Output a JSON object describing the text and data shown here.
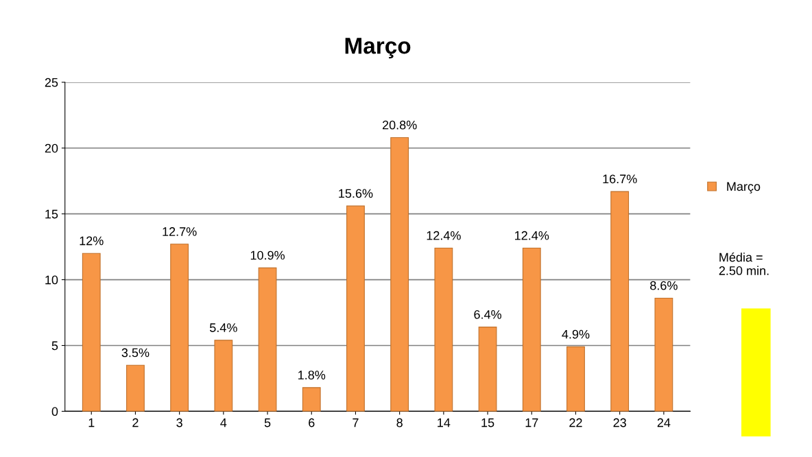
{
  "chart_data": {
    "type": "bar",
    "title": "Março",
    "categories": [
      "1",
      "2",
      "3",
      "4",
      "5",
      "6",
      "7",
      "8",
      "14",
      "15",
      "17",
      "22",
      "23",
      "24"
    ],
    "series": [
      {
        "name": "Março",
        "color": "#f79646",
        "values": [
          12,
          3.5,
          12.7,
          5.4,
          10.9,
          1.8,
          15.6,
          20.8,
          12.4,
          6.4,
          12.4,
          4.9,
          16.7,
          8.6
        ],
        "value_labels": [
          "12%",
          "3.5%",
          "12.7%",
          "5.4%",
          "10.9%",
          "1.8%",
          "15.6%",
          "20.8%",
          "12.4%",
          "6.4%",
          "12.4%",
          "4.9%",
          "16.7%",
          "8.6%"
        ]
      }
    ],
    "ylim": [
      0,
      25
    ],
    "yticks": [
      0,
      5,
      10,
      15,
      20,
      25
    ],
    "grid": "y",
    "legend": "right",
    "annotations": [
      "Média =\n2.50 min."
    ]
  }
}
